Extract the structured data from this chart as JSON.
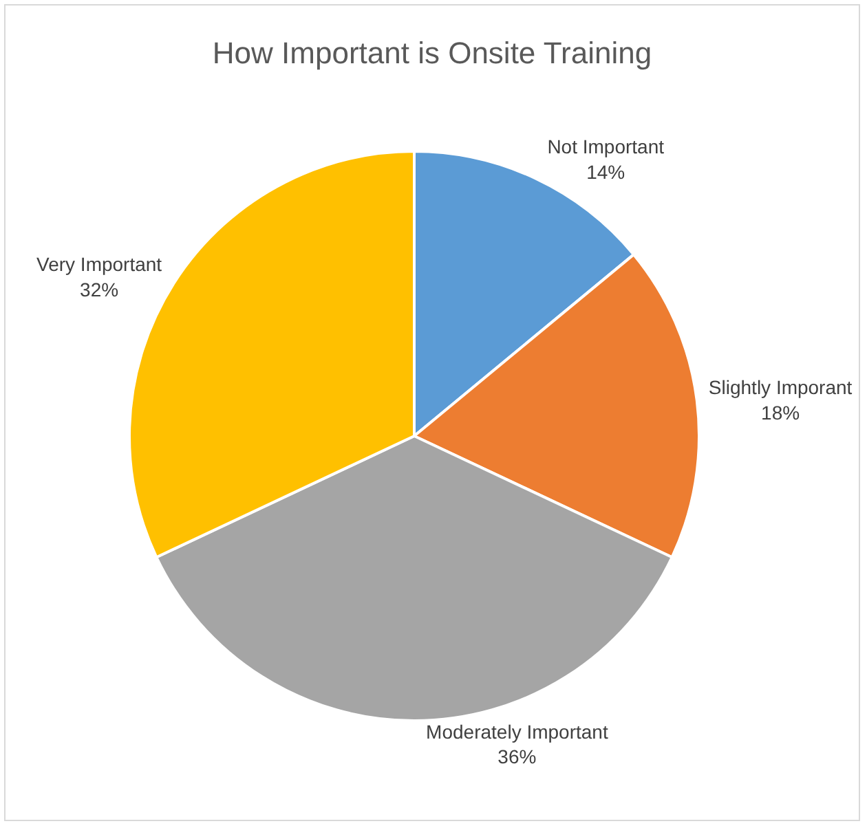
{
  "chart_data": {
    "type": "pie",
    "title": "How Important is Onsite Training",
    "categories": [
      "Not Important",
      "Slightly Imporant",
      "Moderately Important",
      "Very Important"
    ],
    "values": [
      14,
      18,
      36,
      32
    ],
    "value_labels": [
      "14%",
      "18%",
      "36%",
      "32%"
    ],
    "colors": [
      "#5b9bd5",
      "#ed7d31",
      "#a5a5a5",
      "#ffc000"
    ],
    "legend": false
  }
}
